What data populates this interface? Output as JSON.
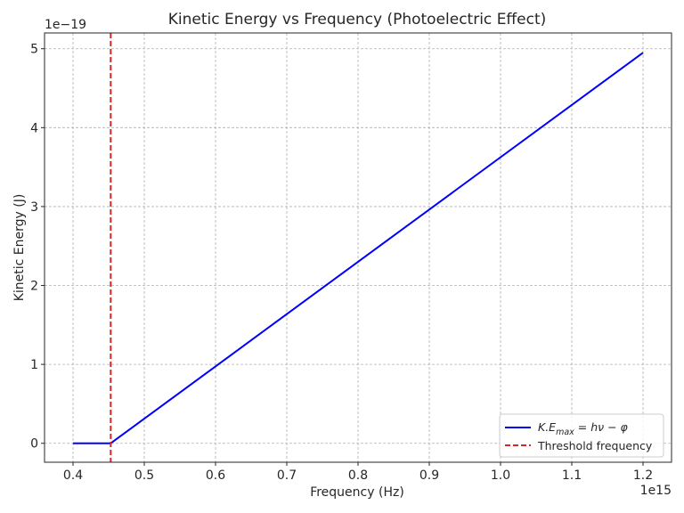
{
  "chart_data": {
    "type": "line",
    "title": "Kinetic Energy vs Frequency (Photoelectric Effect)",
    "xlabel": "Frequency (Hz)",
    "ylabel": "Kinetic Energy (J)",
    "x_offset_text": "1e15",
    "y_offset_text": "1e−19",
    "xlim": [
      0.36,
      1.24
    ],
    "ylim": [
      -0.24,
      5.2
    ],
    "xticks": [
      0.4,
      0.5,
      0.6,
      0.7,
      0.8,
      0.9,
      1.0,
      1.1,
      1.2
    ],
    "xtick_labels": [
      "0.4",
      "0.5",
      "0.6",
      "0.7",
      "0.8",
      "0.9",
      "1.0",
      "1.1",
      "1.2"
    ],
    "yticks": [
      0,
      1,
      2,
      3,
      4,
      5
    ],
    "ytick_labels": [
      "0",
      "1",
      "2",
      "3",
      "4",
      "5"
    ],
    "grid": true,
    "legend_position": "bottom-right",
    "series": [
      {
        "name": "K.E_max = hν − φ",
        "legend_label_parts": {
          "main": "K.E",
          "sub": "max",
          "rest": " = hν − φ"
        },
        "color": "#0000ff",
        "style": "solid",
        "x": [
          0.4,
          0.4529,
          1.2
        ],
        "y": [
          0,
          0,
          4.95
        ]
      },
      {
        "name": "Threshold frequency",
        "color": "#d62728",
        "style": "dashed",
        "vline_x": 0.4529
      }
    ]
  }
}
